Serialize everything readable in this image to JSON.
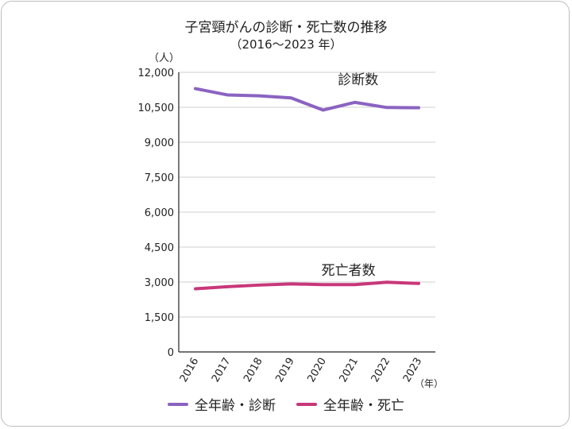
{
  "chart_data": {
    "type": "line",
    "title": "子宮頸がんの診断・死亡数の推移",
    "subtitle": "（2016～2023 年）",
    "ylabel": "（人）",
    "xlabel": "（年）",
    "ylim": [
      0,
      12000
    ],
    "yticks": [
      0,
      1500,
      3000,
      4500,
      6000,
      7500,
      9000,
      10500,
      12000
    ],
    "ytick_labels": [
      "0",
      "1,500",
      "3,000",
      "4,500",
      "6,000",
      "7,500",
      "9,000",
      "10,500",
      "12,000"
    ],
    "categories": [
      "2016",
      "2017",
      "2018",
      "2019",
      "2020",
      "2021",
      "2022",
      "2023"
    ],
    "grid": true,
    "legend_position": "bottom",
    "series": [
      {
        "name": "全年齢・診断",
        "color": "#8a63c1",
        "annotation": "診断数",
        "values": [
          11300,
          11030,
          10990,
          10900,
          10380,
          10710,
          10490,
          10480
        ]
      },
      {
        "name": "全年齢・死亡",
        "color": "#c8377a",
        "annotation": "死亡者数",
        "values": [
          2710,
          2800,
          2870,
          2920,
          2890,
          2890,
          2990,
          2940
        ]
      }
    ]
  }
}
